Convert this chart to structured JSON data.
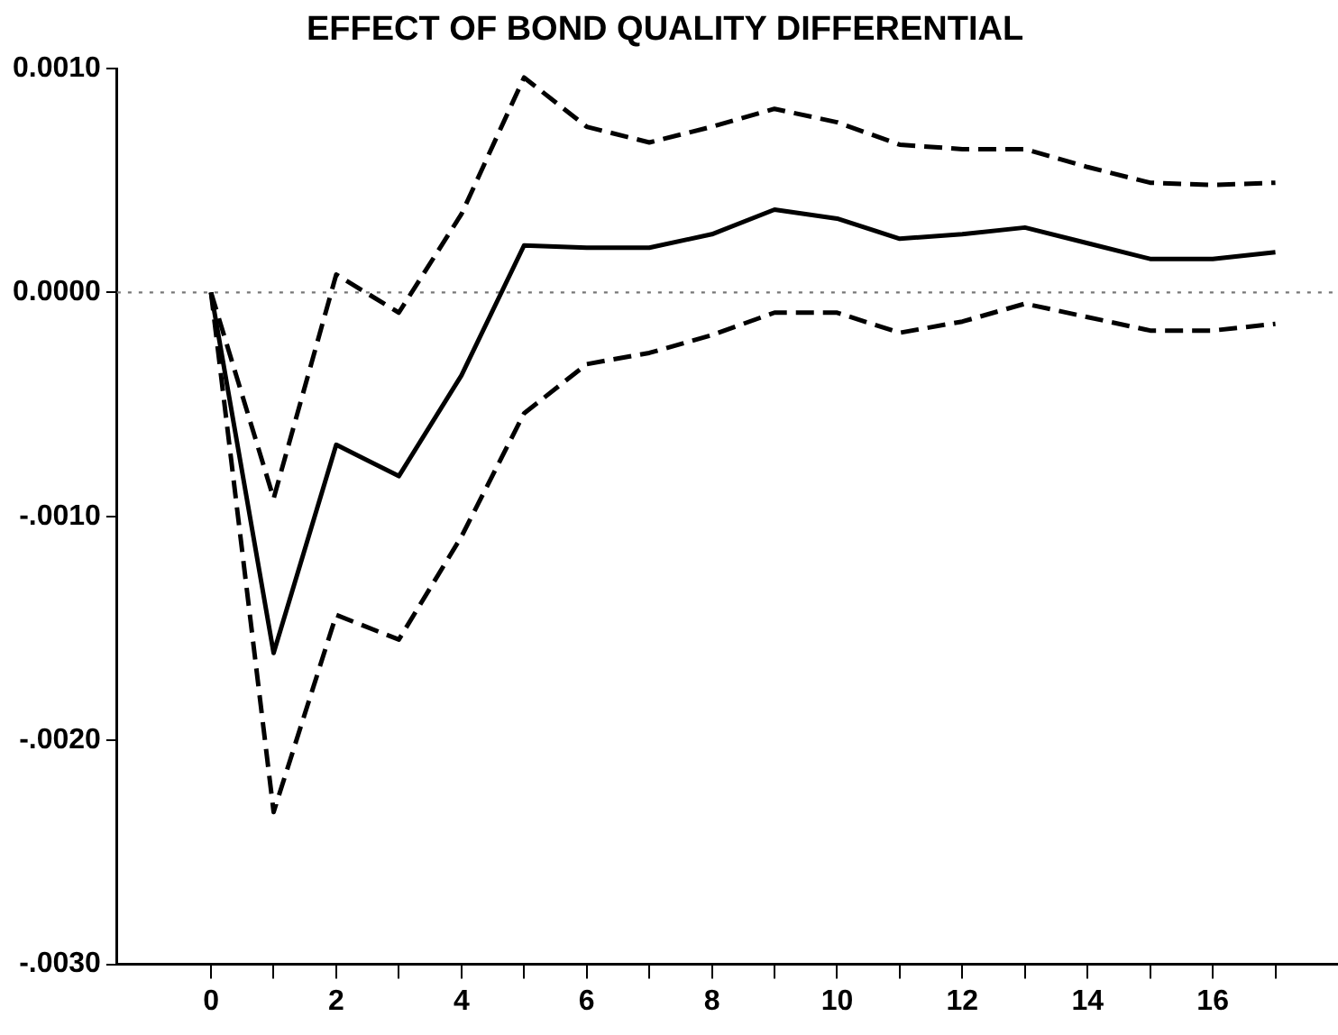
{
  "chart_data": {
    "type": "line",
    "title": "EFFECT OF BOND QUALITY DIFFERENTIAL",
    "x": [
      0,
      1,
      2,
      3,
      4,
      5,
      6,
      7,
      8,
      9,
      10,
      11,
      12,
      13,
      14,
      15,
      16,
      17
    ],
    "series": [
      {
        "color": "#000000",
        "line_style": "solid",
        "values": [
          0,
          -0.00161,
          -0.00068,
          -0.00082,
          -0.00037,
          0.00021,
          0.0002,
          0.0002,
          0.00026,
          0.00037,
          0.00033,
          0.00024,
          0.00026,
          0.00029,
          0.00022,
          0.00015,
          0.00015,
          0.00018
        ]
      },
      {
        "color": "#000000",
        "line_style": "dashed",
        "values": [
          0,
          -0.00092,
          8e-05,
          -9e-05,
          0.00035,
          0.00096,
          0.00074,
          0.00067,
          0.00074,
          0.00082,
          0.00076,
          0.00066,
          0.00064,
          0.00064,
          0.00056,
          0.00049,
          0.00048,
          0.00049
        ]
      },
      {
        "color": "#000000",
        "line_style": "dashed",
        "values": [
          0,
          -0.00232,
          -0.00144,
          -0.00155,
          -0.00109,
          -0.00054,
          -0.00032,
          -0.00027,
          -0.00019,
          -9e-05,
          -9e-05,
          -0.00018,
          -0.00013,
          -5e-05,
          -0.00011,
          -0.00017,
          -0.00017,
          -0.00014
        ]
      }
    ],
    "xlim": [
      -1.5,
      18
    ],
    "xticks": [
      0,
      {
        "value": 1,
        "label": null
      },
      2,
      {
        "value": 3,
        "label": null
      },
      4,
      {
        "value": 5,
        "label": null
      },
      6,
      {
        "value": 7,
        "label": null
      },
      8,
      {
        "value": 9,
        "label": null
      },
      10,
      {
        "value": 11,
        "label": null
      },
      12,
      {
        "value": 13,
        "label": null
      },
      14,
      {
        "value": 15,
        "label": null
      },
      16,
      {
        "value": 17,
        "label": null
      }
    ],
    "ylim": [
      -0.003,
      0.001
    ],
    "yticks": [
      {
        "value": 0.001,
        "label": "0.0010"
      },
      {
        "value": 0,
        "label": "0.0000"
      },
      {
        "value": -0.001,
        "label": "-.0010"
      },
      {
        "value": -0.002,
        "label": "-.0020"
      },
      {
        "value": -0.003,
        "label": "-.0030"
      }
    ],
    "ref_lines": [
      {
        "axis": "y",
        "value": 0,
        "line_style": "dotted",
        "color": "#777777"
      }
    ],
    "grid": false,
    "legend": false,
    "marker": "none"
  }
}
